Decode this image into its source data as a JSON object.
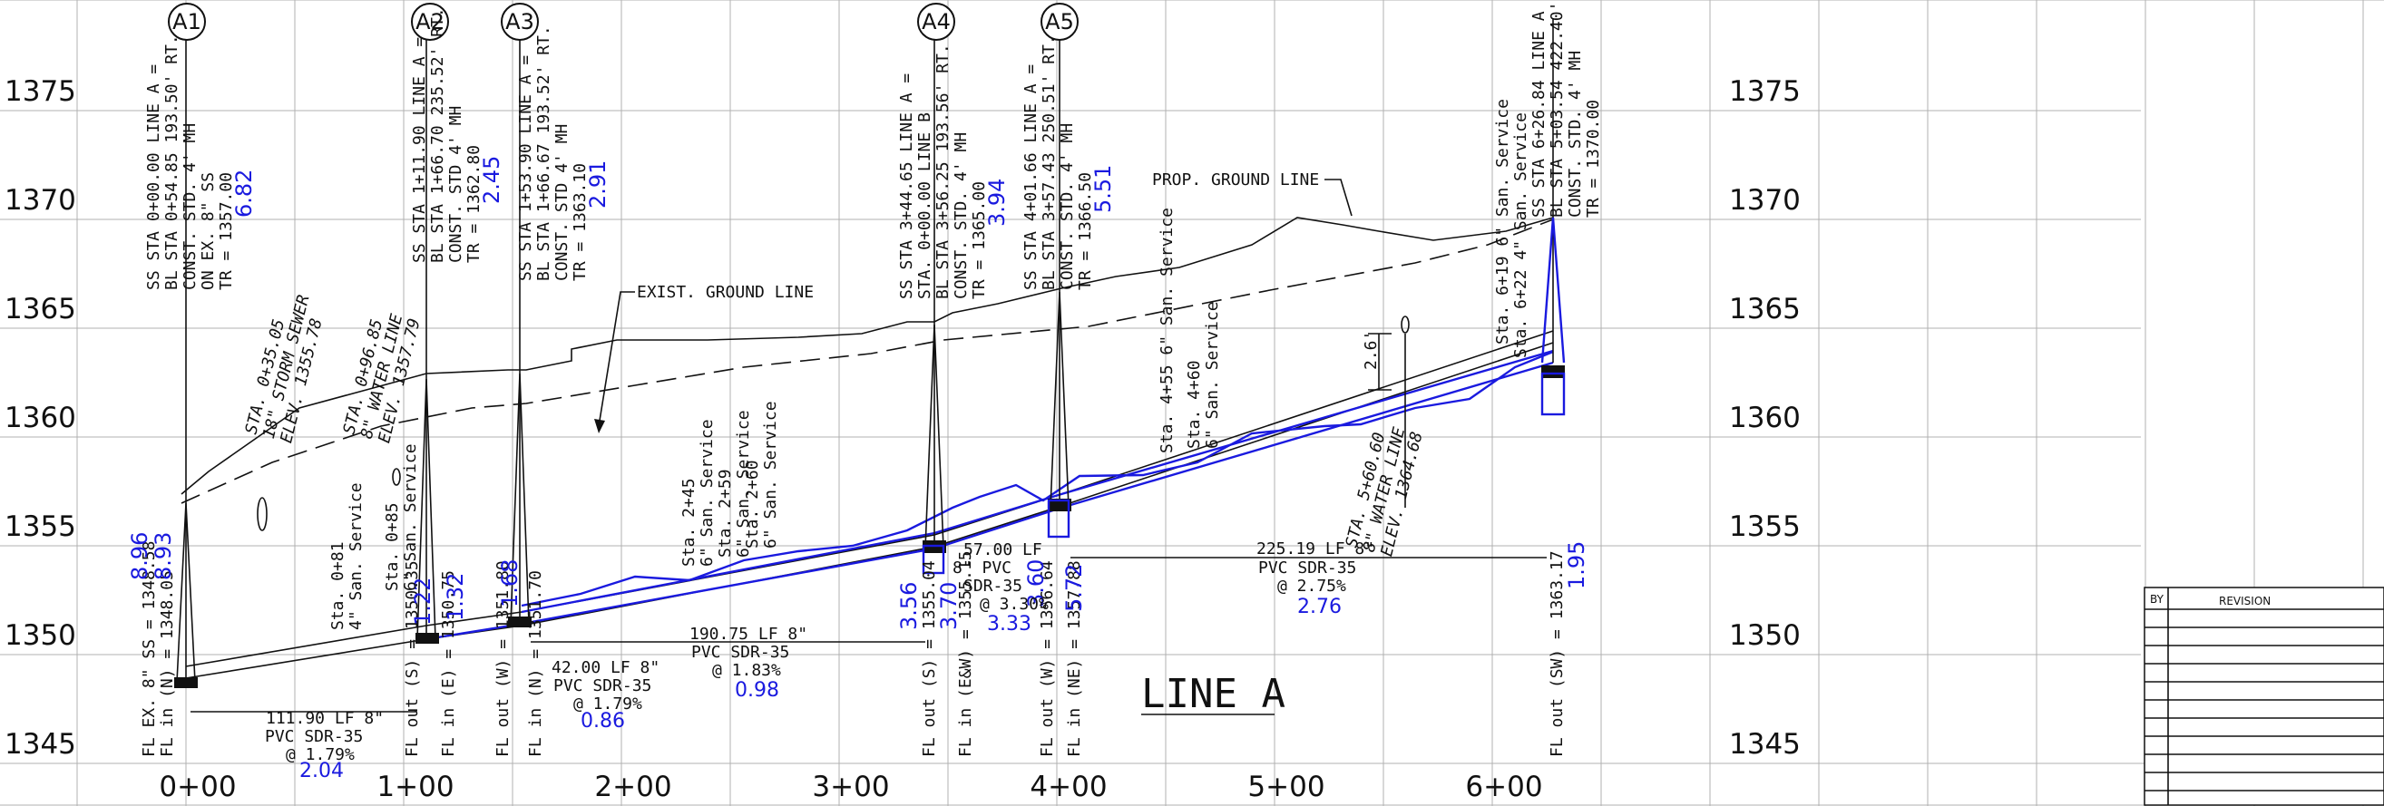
{
  "drawing": {
    "line_title": "LINE A",
    "elevations": [
      "1375",
      "1370",
      "1365",
      "1360",
      "1355",
      "1350",
      "1345"
    ],
    "elevations_right": [
      "1375",
      "1370",
      "1365",
      "1360",
      "1355",
      "1350",
      "1345"
    ],
    "stations": [
      "0+00",
      "1+00",
      "2+00",
      "3+00",
      "4+00",
      "5+00",
      "6+00"
    ],
    "prop_ground": "PROP. GROUND LINE",
    "exist_ground": "EXIST. GROUND LINE",
    "revision_block": {
      "by": "BY",
      "revision": "REVISION"
    }
  },
  "manholes": [
    {
      "id": "A1",
      "lines": [
        "SS STA 0+00.00 LINE A =",
        "BL STA 0+54.85 193.50' RT.",
        "CONST. STD. 4' MH",
        "ON EX. 8\" SS",
        "TR = 1357.00"
      ],
      "depth_old": "6.82",
      "fl": [
        "FL EX. 8\" SS = 1348.58",
        "FL in (N) = 1348.05"
      ],
      "fl_blue": [
        "8.96",
        "8.93"
      ]
    },
    {
      "id": "A2",
      "lines": [
        "SS STA 1+11.90 LINE A =",
        "BL STA 1+66.70 235.52' RT.",
        "CONST. STD 4' MH",
        "TR = 1362.80"
      ],
      "depth_old": "2.45",
      "fl": [
        "FL out (S) = 1350.35",
        "FL in (E) = 1350.75"
      ],
      "fl_blue": [
        "1.22",
        "1.32"
      ]
    },
    {
      "id": "A3",
      "lines": [
        "SS STA 1+53.90 LINE A =",
        "BL STA 1+66.67 193.52' RT.",
        "CONST. STD 4' MH",
        "TR = 1363.10"
      ],
      "depth_old": "2.91",
      "fl": [
        "FL out (W) = 1351.80",
        "FL in (N) = 1351.70"
      ],
      "fl_blue": [
        "1.68"
      ]
    },
    {
      "id": "A4",
      "lines": [
        "SS STA 3+44.65 LINE A =",
        "STA. 0+00.00 LINE B",
        "BL STA 3+56.25 193.56' RT.",
        "CONST. STD. 4' MH",
        "TR = 1365.00"
      ],
      "depth_old": "3.94",
      "fl": [
        "FL out (S) = 1355.04",
        "FL in (E&W) = 1355.15"
      ],
      "fl_blue": [
        "3.56",
        "3.70"
      ]
    },
    {
      "id": "A5",
      "lines": [
        "SS STA 4+01.66 LINE A =",
        "BL STA 3+57.43 250.51' RT.",
        "CONST. STD. 4' MH",
        "TR = 1366.50"
      ],
      "depth_old": "5.51",
      "fl": [
        "FL out (W) = 1356.64",
        "FL in (NE) = 1357.88"
      ],
      "fl_blue": [
        "3.60",
        "5.72"
      ]
    },
    {
      "id": "",
      "lines": [
        "SS STA 6+26.84 LINE A",
        "BL STA 5+03.54 422.40'",
        "CONST. STD. 4' MH",
        "TR = 1370.00"
      ],
      "depth_old": "",
      "fl": [
        "FL out (SW) = 1363.17"
      ],
      "fl_blue": [
        "1.95"
      ]
    }
  ],
  "pipes": [
    {
      "length": "111.90 LF 8\"",
      "material": "PVC SDR-35",
      "slope_old": "@ 1.79%",
      "slope_new": "2.04"
    },
    {
      "length": "42.00 LF 8\"",
      "material": "PVC SDR-35",
      "slope_old": "@ 1.79%",
      "slope_new": "0.86"
    },
    {
      "length": "190.75 LF 8\"",
      "material": "PVC SDR-35",
      "slope_old": "@ 1.83%",
      "slope_new": "0.98"
    },
    {
      "length": "57.00 LF",
      "material": "8\" PVC",
      "material2": "SDR-35",
      "slope_old": "@ 3.30%",
      "slope_new": "3.33"
    },
    {
      "length": "225.19 LF 8\"",
      "material": "PVC SDR-35",
      "slope_old": "@ 2.75%",
      "slope_new": "2.76"
    }
  ],
  "services": [
    [
      "Sta. 0+81",
      "4\" San. Service"
    ],
    [
      "Sta. 0+85",
      "6\" San. Service"
    ],
    [
      "Sta. 2+45",
      "6\" San. Service"
    ],
    [
      "Sta. 2+59",
      "6\" San. Service"
    ],
    [
      "Sta. 2+60",
      "6\" San. Service"
    ],
    [
      "Sta. 4+55 6\" San. Service"
    ],
    [
      "Sta. 4+60",
      "6\" San. Service"
    ],
    [
      "Sta. 6+19 6\" San. Service"
    ],
    [
      "Sta. 6+22 4\" San. Service"
    ]
  ],
  "crossings": [
    [
      "STA. 0+35.05",
      "18\" STORM SEWER",
      "ELEV. 1355.78"
    ],
    [
      "STA. 0+96.85",
      "8\" WATER LINE",
      "ELEV. 1357.79"
    ],
    [
      "STA. 5+60.60",
      "8\" WATER LINE",
      "ELEV. 1364.68"
    ]
  ],
  "dims": {
    "cover": "2.6'"
  }
}
